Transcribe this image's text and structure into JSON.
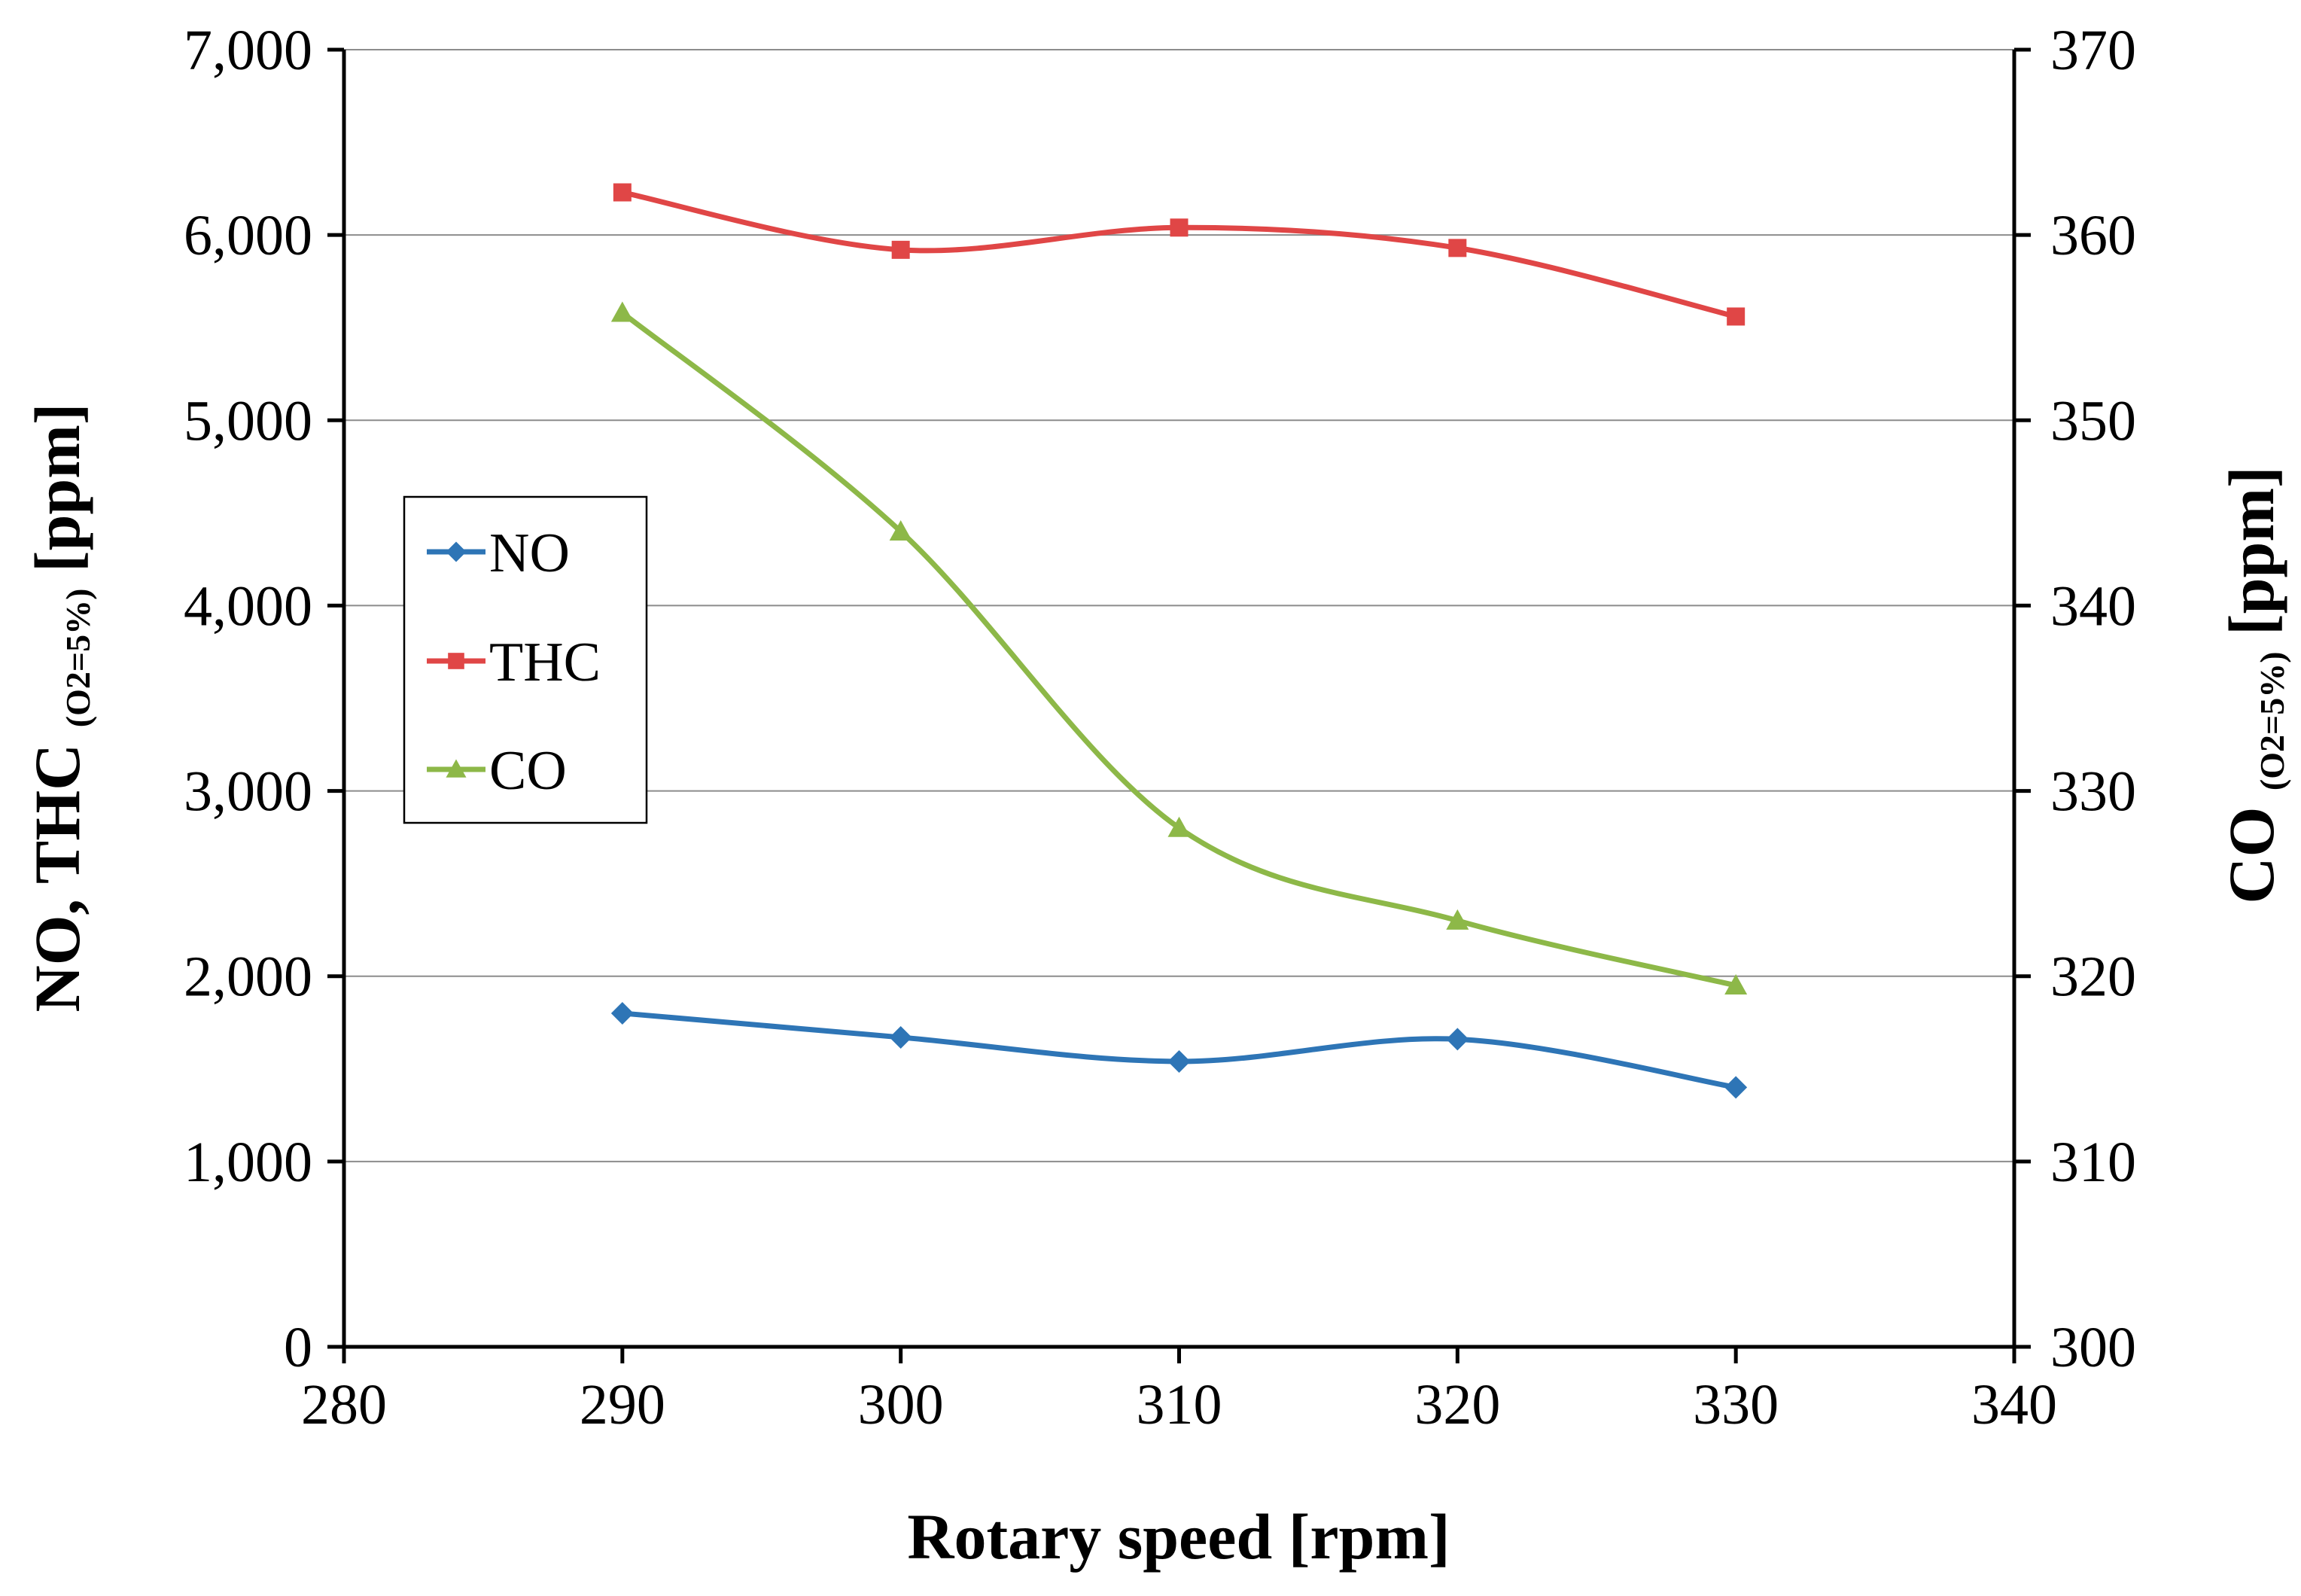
{
  "chart_data": {
    "type": "line",
    "title": "",
    "xlabel": "Rotary speed [rpm]",
    "ylabel": {
      "main": "NO, THC",
      "subscript": "(O2=5%)",
      "unit": "[ppm]"
    },
    "y2label": {
      "main": "CO",
      "subscript": "(O2=5%)",
      "unit": "[ppm]"
    },
    "xlim": [
      280,
      340
    ],
    "ylim": [
      0,
      7000
    ],
    "y2lim": [
      300,
      370
    ],
    "x_ticks": [
      "280",
      "290",
      "300",
      "310",
      "320",
      "330",
      "340"
    ],
    "y_ticks": [
      "0",
      "1,000",
      "2,000",
      "3,000",
      "4,000",
      "5,000",
      "6,000",
      "7,000"
    ],
    "y2_ticks": [
      "300",
      "310",
      "320",
      "330",
      "340",
      "350",
      "360",
      "370"
    ],
    "grid": true,
    "legend_position": "center-left",
    "x": [
      290,
      300,
      310,
      320,
      330
    ],
    "series": [
      {
        "name": "NO",
        "axis": "left",
        "color": "#2E75B6",
        "marker": "diamond",
        "values": [
          1800,
          1670,
          1540,
          1660,
          1400
        ]
      },
      {
        "name": "THC",
        "axis": "left",
        "color": "#E04646",
        "marker": "square",
        "values": [
          6230,
          5920,
          6040,
          5930,
          5560
        ]
      },
      {
        "name": "CO",
        "axis": "right",
        "color": "#8DB848",
        "marker": "triangle",
        "values": [
          355.8,
          344.0,
          328.0,
          323.0,
          319.5
        ]
      }
    ]
  }
}
